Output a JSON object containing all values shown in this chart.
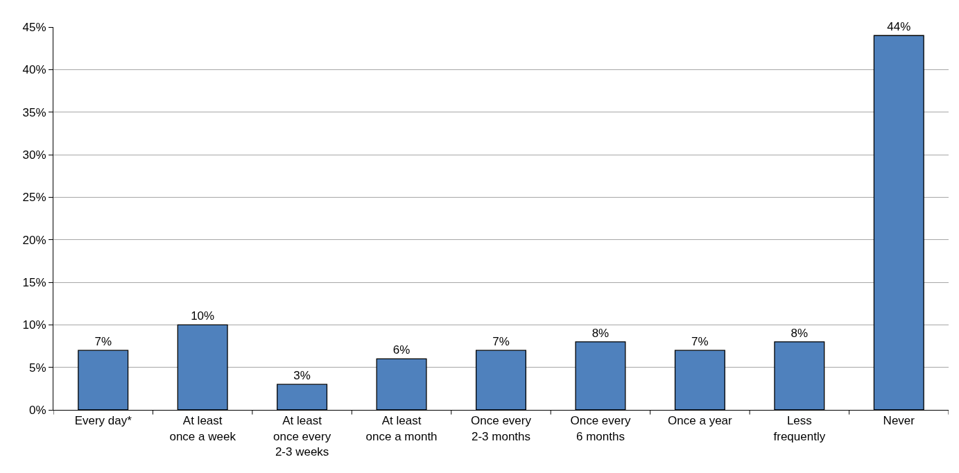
{
  "chart_data": {
    "type": "bar",
    "categories": [
      "Every day*",
      "At least once a week",
      "At least once every 2-3 weeks",
      "At least once a month",
      "Once every 2-3 months",
      "Once every 6 months",
      "Once a year",
      "Less frequently",
      "Never"
    ],
    "values": [
      7,
      10,
      3,
      6,
      7,
      8,
      7,
      8,
      44
    ],
    "value_labels": [
      "7%",
      "10%",
      "3%",
      "6%",
      "7%",
      "8%",
      "7%",
      "8%",
      "44%"
    ],
    "color": "#4f81bd",
    "ylim": [
      0,
      45
    ],
    "yticks": [
      {
        "value": 0,
        "label": "0%"
      },
      {
        "value": 5,
        "label": "5%"
      },
      {
        "value": 10,
        "label": "10%"
      },
      {
        "value": 15,
        "label": "15%"
      },
      {
        "value": 20,
        "label": "20%"
      },
      {
        "value": 25,
        "label": "25%"
      },
      {
        "value": 30,
        "label": "30%"
      },
      {
        "value": 35,
        "label": "35%"
      },
      {
        "value": 40,
        "label": "40%"
      },
      {
        "value": 45,
        "label": "45%"
      }
    ],
    "grid": "y"
  }
}
